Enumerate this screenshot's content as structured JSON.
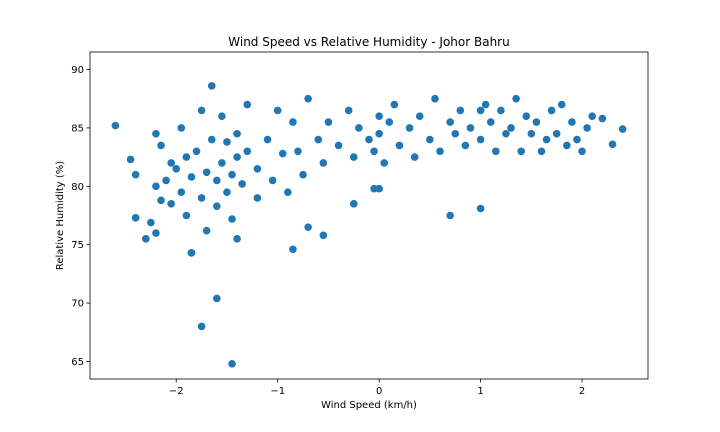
{
  "chart_data": {
    "type": "scatter",
    "title": "Wind Speed vs Relative Humidity - Johor Bahru",
    "xlabel": "Wind Speed (km/h)",
    "ylabel": "Relative Humidity (%)",
    "xlim": [
      -2.85,
      2.65
    ],
    "ylim": [
      63.5,
      91.5
    ],
    "xticks": [
      -2,
      -1,
      0,
      1,
      2
    ],
    "yticks": [
      65,
      70,
      75,
      80,
      85,
      90
    ],
    "xtick_labels": [
      "−2",
      "−1",
      "0",
      "1",
      "2"
    ],
    "ytick_labels": [
      "65",
      "70",
      "75",
      "80",
      "85",
      "90"
    ],
    "grid": false,
    "marker_color": "#1f77b4",
    "series": [
      {
        "x": [
          -2.6,
          -2.45,
          -2.4,
          -2.4,
          -2.3,
          -2.25,
          -2.2,
          -2.2,
          -2.2,
          -2.15,
          -2.15,
          -2.1,
          -2.05,
          -2.05,
          -2.0,
          -1.95,
          -1.95,
          -1.9,
          -1.9,
          -1.85,
          -1.85,
          -1.8,
          -1.75,
          -1.75,
          -1.7,
          -1.7,
          -1.65,
          -1.65,
          -1.6,
          -1.6,
          -1.55,
          -1.55,
          -1.5,
          -1.5,
          -1.45,
          -1.45,
          -1.4,
          -1.4,
          -1.4,
          -1.35,
          -1.3,
          -1.3,
          -1.2,
          -1.2,
          -1.1,
          -1.05,
          -1.0,
          -0.95,
          -0.9,
          -0.85,
          -0.8,
          -0.75,
          -0.7,
          -0.6,
          -0.55,
          -0.5,
          -0.4,
          -0.3,
          -0.25,
          -0.2,
          -0.1,
          -0.05,
          0.0,
          0.0,
          0.05,
          0.1,
          0.15,
          0.2,
          0.3,
          0.35,
          0.4,
          0.5,
          0.55,
          0.6,
          0.7,
          0.75,
          0.8,
          0.85,
          0.9,
          1.0,
          1.0,
          1.05,
          1.1,
          1.15,
          1.2,
          1.25,
          1.3,
          1.35,
          1.4,
          1.45,
          1.5,
          1.55,
          1.6,
          1.65,
          1.7,
          1.75,
          1.8,
          1.85,
          1.9,
          1.95,
          2.0,
          2.05,
          2.1,
          2.2,
          2.3,
          2.4,
          -1.45,
          -1.75,
          -1.6,
          -1.85,
          -0.85,
          -0.55,
          -0.7,
          -0.25,
          0.7,
          1.0,
          -0.05,
          0.0
        ],
        "y": [
          85.2,
          82.3,
          81.0,
          77.3,
          75.5,
          76.9,
          84.5,
          80.0,
          76.0,
          78.8,
          83.5,
          80.5,
          82.0,
          78.5,
          81.5,
          85.0,
          79.5,
          82.5,
          77.5,
          74.3,
          80.8,
          83.0,
          79.0,
          86.5,
          81.2,
          76.2,
          84.0,
          88.6,
          80.5,
          78.3,
          86.0,
          82.0,
          79.5,
          83.8,
          81.0,
          77.2,
          84.5,
          82.5,
          75.5,
          80.2,
          87.0,
          83.0,
          79.0,
          81.5,
          84.0,
          80.5,
          86.5,
          82.8,
          79.5,
          85.5,
          83.0,
          81.0,
          87.5,
          84.0,
          82.0,
          85.5,
          83.5,
          86.5,
          82.5,
          85.0,
          84.0,
          83.0,
          86.0,
          84.5,
          82.0,
          85.5,
          87.0,
          83.5,
          85.0,
          82.5,
          86.0,
          84.0,
          87.5,
          83.0,
          85.5,
          84.5,
          86.5,
          83.5,
          85.0,
          86.5,
          84.0,
          87.0,
          85.5,
          83.0,
          86.5,
          84.5,
          85.0,
          87.5,
          83.0,
          86.0,
          84.5,
          85.5,
          83.0,
          84.0,
          86.5,
          84.5,
          87.0,
          83.5,
          85.5,
          84.0,
          83.0,
          85.0,
          86.0,
          85.8,
          83.6,
          84.9,
          64.8,
          68.0,
          70.4,
          74.3,
          74.6,
          75.8,
          76.5,
          78.5,
          77.5,
          78.1,
          79.8,
          79.8
        ]
      }
    ]
  }
}
